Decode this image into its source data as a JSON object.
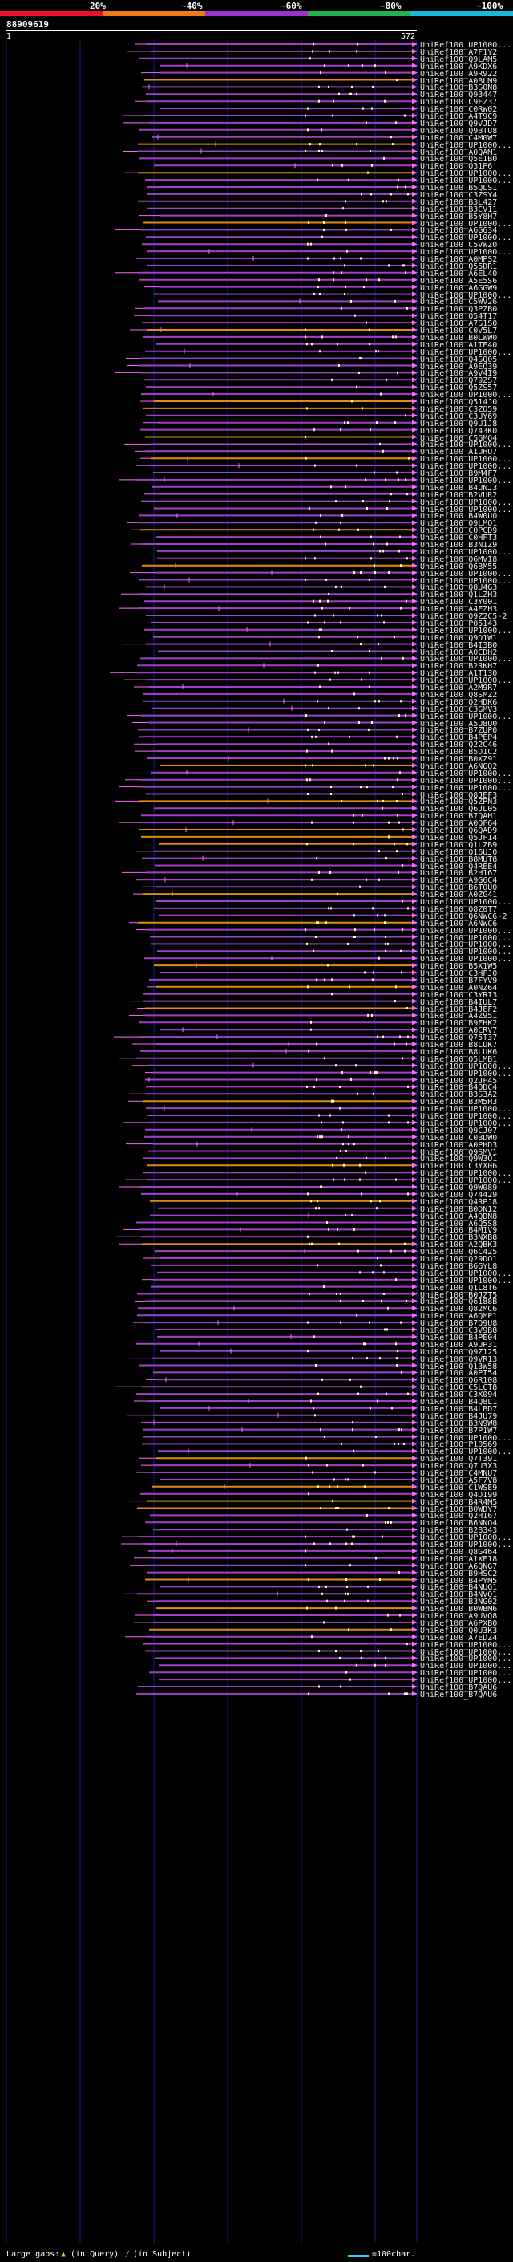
{
  "header": {
    "query_id": "88909619",
    "ruler_start": "1",
    "ruler_end": "572",
    "scale": [
      {
        "label": "20%",
        "color": "#e8102a"
      },
      {
        "label": "~40%",
        "color": "#f07a1a"
      },
      {
        "label": "~60%",
        "color": "#9933cc"
      },
      {
        "label": "~80%",
        "color": "#22b14c"
      },
      {
        "label": "~100%",
        "color": "#17b8d9"
      }
    ]
  },
  "colors": {
    "hit_main": "#a040c8",
    "hit_alt": "#e08a10",
    "gap_line": "#ff66ff",
    "arrow": "#ff66ff",
    "dots": "#ffffcc",
    "grid": "#11208a"
  },
  "hits": [
    "UniRef100_UP1000...",
    "UniRef100_A7F1Y2",
    "UniRef100_Q9LAM5",
    "UniRef100_A9KDX6",
    "UniRef100_A9R922",
    "UniRef100_A0BLM9",
    "UniRef100_B3S0N8",
    "UniRef100_Q93447",
    "UniRef100_C9FZ37",
    "UniRef100_C0RW02",
    "UniRef100_A4T9C9",
    "UniRef100_Q9VJD7",
    "UniRef100_Q9BTU8",
    "UniRef100_C4M0W7",
    "UniRef100_UP1000...",
    "UniRef100_A0QAM1",
    "UniRef100_Q5E1B0",
    "UniRef100_Q31P6",
    "UniRef100_UP1000...",
    "UniRef100_UP1000...",
    "UniRef100_B5QLS1",
    "UniRef100_C3ZSY4",
    "UniRef100_B3L427",
    "UniRef100_B3CV11",
    "UniRef100_B5Y8H7",
    "UniRef100_UP1000...",
    "UniRef100_A6G634",
    "UniRef100_UP1000...",
    "UniRef100_C5VWZ0",
    "UniRef100_UP1000...",
    "UniRef100_A0MPS2",
    "UniRef100_Q55DR1",
    "UniRef100_A6EL40",
    "UniRef100_A5E5S6",
    "UniRef100_A6GGW9",
    "UniRef100_UP1000...",
    "UniRef100_C5WV26",
    "UniRef100_Q3PZB0",
    "UniRef100_Q54T17",
    "UniRef100_A7S1S0",
    "UniRef100_C0V5L7",
    "UniRef100_B0LWW0",
    "UniRef100_A1TE40",
    "UniRef100_UP1000...",
    "UniRef100_Q4SQ05",
    "UniRef100_A9EQ39",
    "UniRef100_A9V4I9",
    "UniRef100_Q79ZS7",
    "UniRef100_Q5ZS57",
    "UniRef100_UP1000...",
    "UniRef100_Q514J0",
    "UniRef100_C3ZQ59",
    "UniRef100_C3UY69",
    "UniRef100_Q9U1J8",
    "UniRef100_Q743K0",
    "UniRef100_C5GMQ4",
    "UniRef100_UP1000...",
    "UniRef100_A1UHU7",
    "UniRef100_UP1000...",
    "UniRef100_UP1000...",
    "UniRef100_B9M4F7",
    "UniRef100_UP1000...",
    "UniRef100_B4UNJ3",
    "UniRef100_B2VUR2",
    "UniRef100_UP1000...",
    "UniRef100_UP1000...",
    "UniRef100_B4W0U0",
    "UniRef100_Q9LMQ1",
    "UniRef100_C0PCD9",
    "UniRef100_C0HFT3",
    "UniRef100_B3N1Z9",
    "UniRef100_UP1000...",
    "UniRef100_Q6MVI8",
    "UniRef100_Q6BM55",
    "UniRef100_UP1000...",
    "UniRef100_UP1000...",
    "UniRef100_Q8U4G3",
    "UniRef100_Q1LZH3",
    "UniRef100_C3Y001",
    "UniRef100_A4EZH3",
    "UniRef100_Q9Z2C5-2",
    "UniRef100_P05143",
    "UniRef100_UP1000...",
    "UniRef100_Q9D1W1",
    "UniRef100_B4I3B0",
    "UniRef100_A0CDH2",
    "UniRef100_UP1000...",
    "UniRef100_B2RKH7",
    "UniRef100_A1T130",
    "UniRef100_UP1000...",
    "UniRef100_A2M9R7",
    "UniRef100_Q8SMZ2",
    "UniRef100_Q2HDK6",
    "UniRef100_C3GMV3",
    "UniRef100_UP1000...",
    "UniRef100_A5U8U0",
    "UniRef100_B7ZUP0",
    "UniRef100_B4PEP4",
    "UniRef100_Q22C46",
    "UniRef100_B5D1C2",
    "UniRef100_B0XZ91",
    "UniRef100_A6NGQ2",
    "UniRef100_UP1000...",
    "UniRef100_UP1000...",
    "UniRef100_UP1000...",
    "UniRef100_Q8JEF3",
    "UniRef100_Q5ZPN3",
    "UniRef100_Q6JL05",
    "UniRef100_B7QAH1",
    "UniRef100_A0QF64",
    "UniRef100_Q6QAD9",
    "UniRef100_Q5JF14",
    "UniRef100_Q1LZB9",
    "UniRef100_Q16UJ0",
    "UniRef100_B8MUT8",
    "UniRef100_Q4REE4",
    "UniRef100_B2H167",
    "UniRef100_A9G6C4",
    "UniRef100_B6T0U0",
    "UniRef100_A0ZG41",
    "UniRef100_UP1000...",
    "UniRef100_Q8Z0T7",
    "UniRef100_Q6NWC6-2",
    "UniRef100_A6NWC6",
    "UniRef100_UP1000...",
    "UniRef100_UP1000...",
    "UniRef100_UP1000...",
    "UniRef100_UP1000...",
    "UniRef100_UP1000...",
    "UniRef100_B5X1W5",
    "UniRef100_C3HFJ0",
    "UniRef100_B7FYV9",
    "UniRef100_A0NZ64",
    "UniRef100_C3YRI3",
    "UniRef100_B4IUL7",
    "UniRef100_B4JEF2",
    "UniRef100_A4Z951",
    "UniRef100_B9EHK2",
    "UniRef100_A0CRV7",
    "UniRef100_Q75T37",
    "UniRef100_B8LUK7",
    "UniRef100_B8LUK6",
    "UniRef100_Q5LMB1",
    "UniRef100_UP1000...",
    "UniRef100_UP1000...",
    "UniRef100_Q2JF45",
    "UniRef100_B4QDC4",
    "UniRef100_B3S3A2",
    "UniRef100_B3M5H3",
    "UniRef100_UP1000...",
    "UniRef100_UP1000...",
    "UniRef100_UP1000...",
    "UniRef100_Q9CJ07",
    "UniRef100_C0BDW0",
    "UniRef100_A0PHD3",
    "UniRef100_Q9SMV1",
    "UniRef100_Q9W3Q1",
    "UniRef100_C3YX06",
    "UniRef100_UP1000...",
    "UniRef100_UP1000...",
    "UniRef100_Q9W089",
    "UniRef100_Q74429",
    "UniRef100_Q4RPJ8",
    "UniRef100_B0DN12",
    "UniRef100_A4QDN8",
    "UniRef100_A6Q5S8",
    "UniRef100_B4M1V9",
    "UniRef100_B3NXB8",
    "UniRef100_A2QBK3",
    "UniRef100_Q6C425",
    "UniRef100_Q29DO1",
    "UniRef100_B6GYL8",
    "UniRef100_UP1000...",
    "UniRef100_UP1000...",
    "UniRef100_Q1L8T6",
    "UniRef100_B0JZT5",
    "UniRef100_Q6188B",
    "UniRef100_Q82MC6",
    "UniRef100_A6QMP1",
    "UniRef100_B7Q9U8",
    "UniRef100_C3V9B8",
    "UniRef100_B4PE04",
    "UniRef100_A9UP31",
    "UniRef100_Q9Z125",
    "UniRef100_Q9VR13",
    "UniRef100_Q13W58",
    "UniRef100_A0PI54",
    "UniRef100_Q6R108",
    "UniRef100_C5LCT8",
    "UniRef100_C3X094",
    "UniRef100_B4Q8L1",
    "UniRef100_B4LBD7",
    "UniRef100_B4JU79",
    "UniRef100_B3N9W8",
    "UniRef100_B7P1W7",
    "UniRef100_UP1000...",
    "UniRef100_P10569",
    "UniRef100_UP1000...",
    "UniRef100_Q7T391",
    "UniRef100_Q7U3X3",
    "UniRef100_C4MNU7",
    "UniRef100_A5F7V8",
    "UniRef100_C1WSE9",
    "UniRef100_Q4D199",
    "UniRef100_B4R4M5",
    "UniRef100_B0WDY7",
    "UniRef100_Q2H167",
    "UniRef100_B6NNQ4",
    "UniRef100_B2B343",
    "UniRef100_UP1000...",
    "UniRef100_UP1000...",
    "UniRef100_Q8G464",
    "UniRef100_A1XE18",
    "UniRef100_A6QNG7",
    "UniRef100_B9HSC2",
    "UniRef100_B4PYM5",
    "UniRef100_B4NUG1",
    "UniRef100_B4NVQ1",
    "UniRef100_B3NG02",
    "UniRef100_B0WBM6",
    "UniRef100_A9UVQ8",
    "UniRef100_A6PXB0",
    "UniRef100_Q0U3K3",
    "UniRef100_A7EDZ4",
    "UniRef100_UP1000...",
    "UniRef100_UP1000...",
    "UniRef100_UP1000...",
    "UniRef100_UP1000...",
    "UniRef100_UP1000...",
    "UniRef100_UP1000...",
    "UniRef100_B7QAU6",
    "UniRef100_B7QAU6"
  ],
  "legend": {
    "gaps_label": "Large gaps:",
    "query_label": "(in Query)",
    "subject_label": "(in Subject)",
    "scale_label": "=100char."
  }
}
